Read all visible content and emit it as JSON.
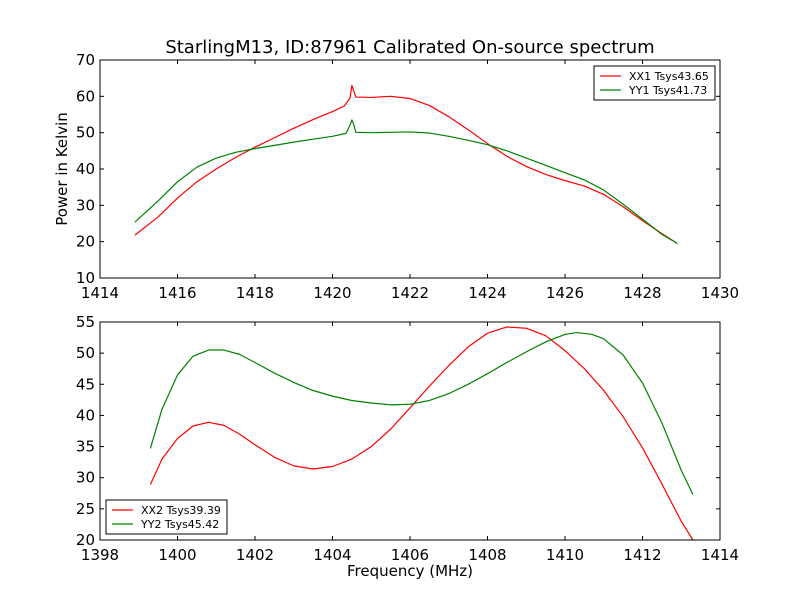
{
  "chart_data": [
    {
      "type": "line",
      "title": "StarlingM13, ID:87961 Calibrated On-source spectrum",
      "xlabel": "",
      "ylabel": "Power in Kelvin",
      "xlim": [
        1414,
        1430
      ],
      "ylim": [
        10,
        70
      ],
      "xticks": [
        1414,
        1416,
        1418,
        1420,
        1422,
        1424,
        1426,
        1428,
        1430
      ],
      "yticks": [
        10,
        20,
        30,
        40,
        50,
        60,
        70
      ],
      "grid": false,
      "legend_position": "top-right",
      "series": [
        {
          "name": "XX1 Tsys43.65",
          "color": "#ff0000",
          "points": [
            [
              1414.9,
              21.8
            ],
            [
              1415.5,
              26.8
            ],
            [
              1416.0,
              32.0
            ],
            [
              1416.5,
              36.5
            ],
            [
              1417.0,
              40.0
            ],
            [
              1417.5,
              43.2
            ],
            [
              1418.0,
              46.0
            ],
            [
              1418.5,
              48.6
            ],
            [
              1419.0,
              51.2
            ],
            [
              1419.5,
              53.6
            ],
            [
              1420.0,
              55.8
            ],
            [
              1420.3,
              57.3
            ],
            [
              1420.45,
              59.5
            ],
            [
              1420.5,
              63.0
            ],
            [
              1420.55,
              61.5
            ],
            [
              1420.6,
              59.8
            ],
            [
              1421.0,
              59.7
            ],
            [
              1421.5,
              60.0
            ],
            [
              1422.0,
              59.4
            ],
            [
              1422.5,
              57.5
            ],
            [
              1423.0,
              54.4
            ],
            [
              1423.5,
              50.8
            ],
            [
              1424.0,
              47.0
            ],
            [
              1424.5,
              43.5
            ],
            [
              1425.0,
              40.7
            ],
            [
              1425.5,
              38.5
            ],
            [
              1426.0,
              36.8
            ],
            [
              1426.5,
              35.3
            ],
            [
              1427.0,
              33.0
            ],
            [
              1427.5,
              29.6
            ],
            [
              1428.0,
              25.8
            ],
            [
              1428.5,
              22.2
            ],
            [
              1428.9,
              19.5
            ]
          ]
        },
        {
          "name": "YY1 Tsys41.73",
          "color": "#008000",
          "points": [
            [
              1414.9,
              25.4
            ],
            [
              1415.5,
              31.2
            ],
            [
              1416.0,
              36.5
            ],
            [
              1416.5,
              40.5
            ],
            [
              1417.0,
              43.0
            ],
            [
              1417.5,
              44.6
            ],
            [
              1418.0,
              45.6
            ],
            [
              1418.5,
              46.5
            ],
            [
              1419.0,
              47.4
            ],
            [
              1419.5,
              48.2
            ],
            [
              1420.0,
              49.0
            ],
            [
              1420.35,
              49.8
            ],
            [
              1420.45,
              52.0
            ],
            [
              1420.5,
              53.5
            ],
            [
              1420.55,
              52.2
            ],
            [
              1420.6,
              50.1
            ],
            [
              1421.0,
              50.0
            ],
            [
              1421.5,
              50.1
            ],
            [
              1422.0,
              50.2
            ],
            [
              1422.5,
              49.9
            ],
            [
              1423.0,
              49.0
            ],
            [
              1423.5,
              47.9
            ],
            [
              1424.0,
              46.7
            ],
            [
              1424.5,
              45.0
            ],
            [
              1425.0,
              43.0
            ],
            [
              1425.5,
              41.0
            ],
            [
              1426.0,
              39.0
            ],
            [
              1426.5,
              37.0
            ],
            [
              1427.0,
              34.2
            ],
            [
              1427.5,
              30.3
            ],
            [
              1428.0,
              26.2
            ],
            [
              1428.5,
              22.0
            ],
            [
              1428.9,
              19.5
            ]
          ]
        }
      ]
    },
    {
      "type": "line",
      "title": "",
      "xlabel": "Frequency (MHz)",
      "ylabel": "",
      "xlim": [
        1398,
        1414
      ],
      "ylim": [
        20,
        55
      ],
      "xticks": [
        1398,
        1400,
        1402,
        1404,
        1406,
        1408,
        1410,
        1412,
        1414
      ],
      "yticks": [
        20,
        25,
        30,
        35,
        40,
        45,
        50,
        55
      ],
      "grid": false,
      "legend_position": "bottom-left",
      "series": [
        {
          "name": "XX2 Tsys39.39",
          "color": "#ff0000",
          "points": [
            [
              1399.3,
              28.9
            ],
            [
              1399.6,
              33.0
            ],
            [
              1400.0,
              36.3
            ],
            [
              1400.4,
              38.3
            ],
            [
              1400.8,
              38.9
            ],
            [
              1401.2,
              38.4
            ],
            [
              1401.6,
              37.0
            ],
            [
              1402.0,
              35.3
            ],
            [
              1402.5,
              33.3
            ],
            [
              1403.0,
              31.9
            ],
            [
              1403.5,
              31.4
            ],
            [
              1404.0,
              31.8
            ],
            [
              1404.5,
              33.0
            ],
            [
              1405.0,
              35.0
            ],
            [
              1405.5,
              37.8
            ],
            [
              1406.0,
              41.2
            ],
            [
              1406.5,
              44.7
            ],
            [
              1407.0,
              48.0
            ],
            [
              1407.5,
              51.0
            ],
            [
              1408.0,
              53.2
            ],
            [
              1408.5,
              54.2
            ],
            [
              1409.0,
              54.0
            ],
            [
              1409.5,
              52.8
            ],
            [
              1410.0,
              50.4
            ],
            [
              1410.5,
              47.5
            ],
            [
              1411.0,
              44.0
            ],
            [
              1411.5,
              39.8
            ],
            [
              1412.0,
              34.8
            ],
            [
              1412.5,
              29.0
            ],
            [
              1413.0,
              23.0
            ],
            [
              1413.3,
              20.0
            ]
          ]
        },
        {
          "name": "YY2 Tsys45.42",
          "color": "#008000",
          "points": [
            [
              1399.3,
              34.7
            ],
            [
              1399.6,
              41.0
            ],
            [
              1400.0,
              46.5
            ],
            [
              1400.4,
              49.5
            ],
            [
              1400.8,
              50.5
            ],
            [
              1401.2,
              50.5
            ],
            [
              1401.6,
              49.8
            ],
            [
              1402.0,
              48.5
            ],
            [
              1402.5,
              46.8
            ],
            [
              1403.0,
              45.3
            ],
            [
              1403.5,
              44.0
            ],
            [
              1404.0,
              43.1
            ],
            [
              1404.5,
              42.4
            ],
            [
              1405.0,
              42.0
            ],
            [
              1405.5,
              41.7
            ],
            [
              1406.0,
              41.8
            ],
            [
              1406.5,
              42.4
            ],
            [
              1407.0,
              43.5
            ],
            [
              1407.5,
              45.0
            ],
            [
              1408.0,
              46.7
            ],
            [
              1408.5,
              48.5
            ],
            [
              1409.0,
              50.2
            ],
            [
              1409.5,
              51.8
            ],
            [
              1410.0,
              53.0
            ],
            [
              1410.3,
              53.3
            ],
            [
              1410.7,
              53.0
            ],
            [
              1411.0,
              52.3
            ],
            [
              1411.5,
              49.7
            ],
            [
              1412.0,
              45.2
            ],
            [
              1412.5,
              38.8
            ],
            [
              1413.0,
              31.2
            ],
            [
              1413.3,
              27.3
            ]
          ]
        }
      ]
    }
  ]
}
